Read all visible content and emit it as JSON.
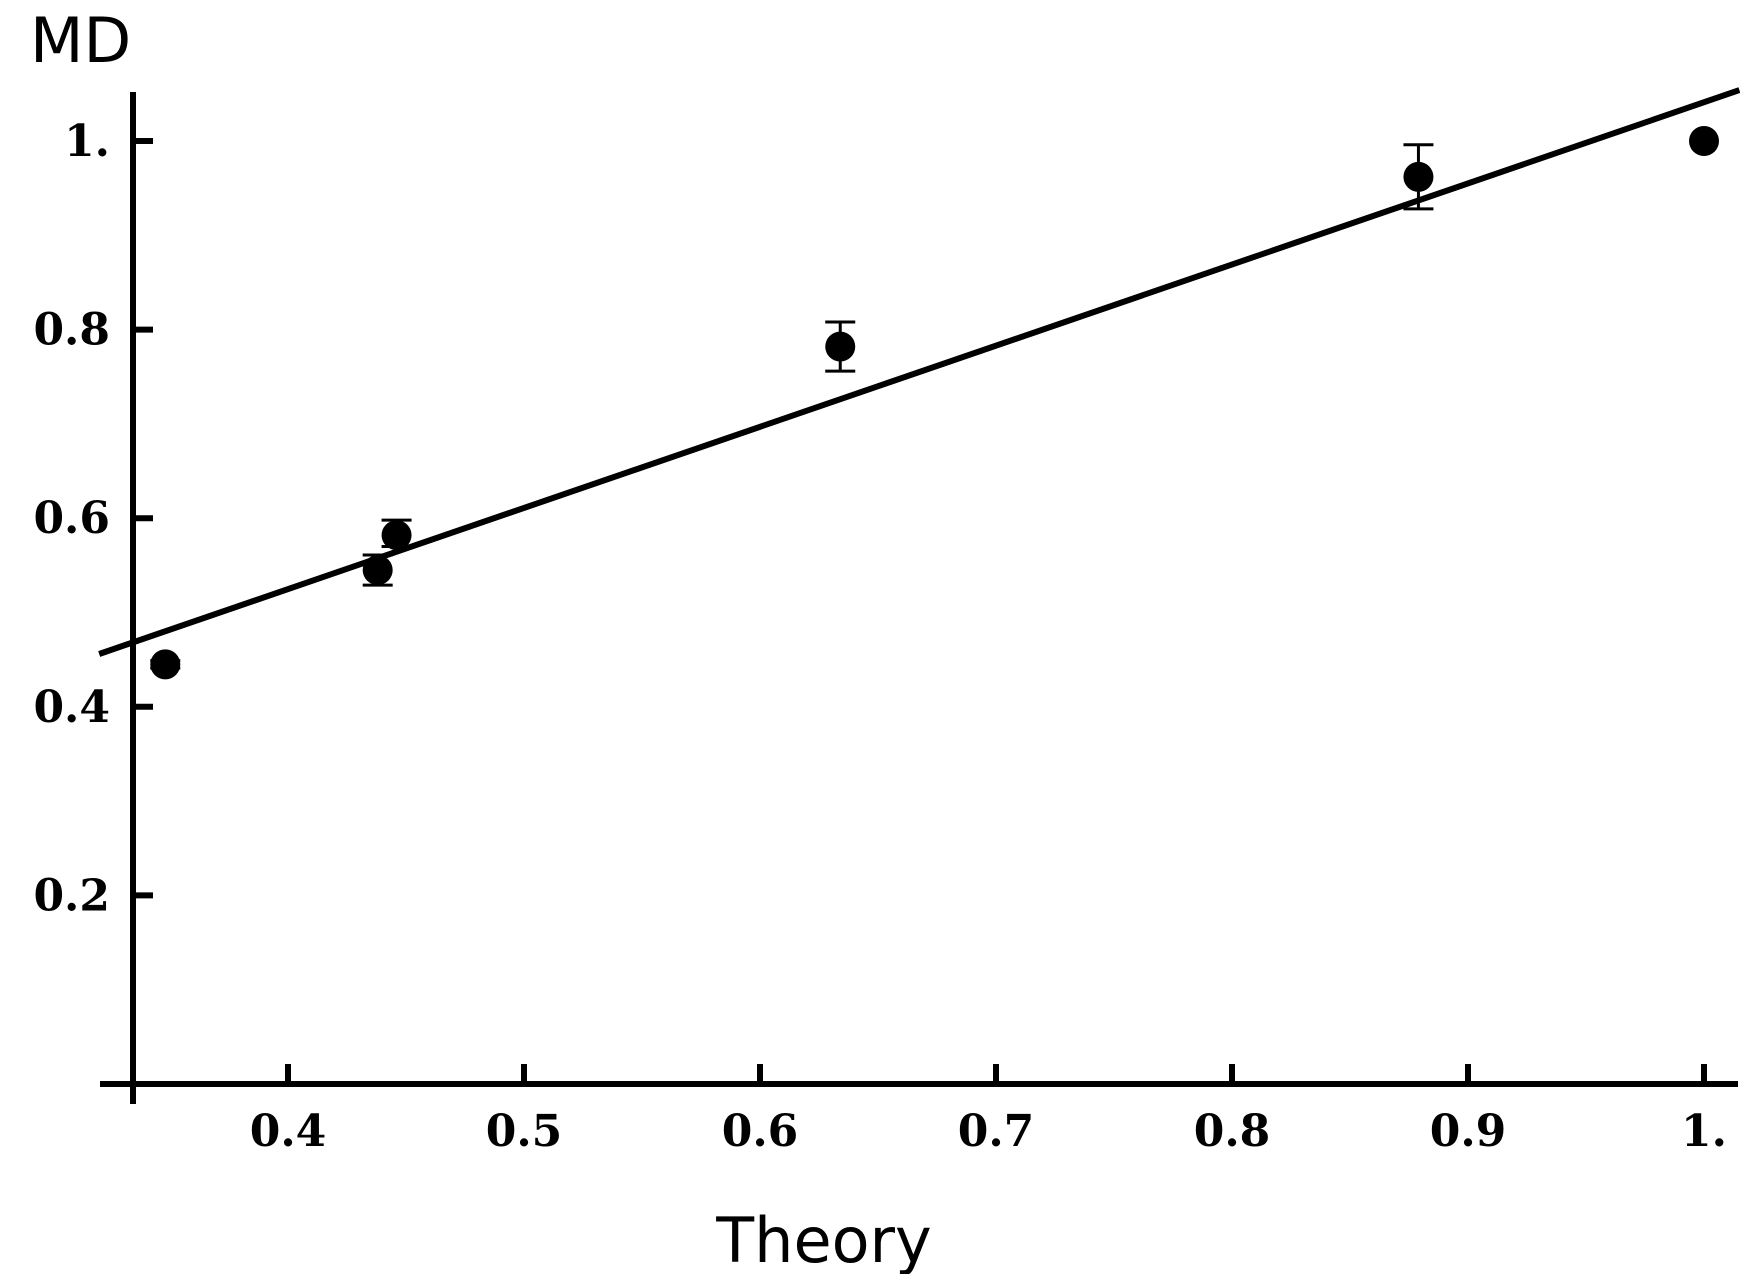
{
  "chart_data": {
    "type": "scatter",
    "title": "",
    "xlabel": "Theory",
    "ylabel": "MD",
    "xlim": [
      0.335,
      1.015
    ],
    "ylim": [
      0.0,
      1.05
    ],
    "xticks": [
      0.4,
      0.5,
      0.6,
      0.7,
      0.8,
      0.9,
      1.0
    ],
    "xtick_labels": [
      "0.4",
      "0.5",
      "0.6",
      "0.7",
      "0.8",
      "0.9",
      "1."
    ],
    "yticks": [
      0.2,
      0.4,
      0.6,
      0.8,
      1.0
    ],
    "ytick_labels": [
      "0.2",
      "0.4",
      "0.6",
      "0.8",
      "1."
    ],
    "grid": false,
    "legend": "none",
    "colors": {
      "points": "#000000",
      "fit_line": "#000000",
      "axes": "#000000"
    },
    "series": [
      {
        "type": "scatter",
        "x": [
          0.348,
          0.438,
          0.446,
          0.634,
          0.879,
          1.0
        ],
        "y": [
          0.445,
          0.545,
          0.582,
          0.782,
          0.962,
          1.0
        ],
        "yerr_low": [
          0.004,
          0.016,
          0.012,
          0.026,
          0.034,
          0.0
        ],
        "yerr_high": [
          0.004,
          0.016,
          0.016,
          0.026,
          0.034,
          0.0
        ]
      },
      {
        "type": "line",
        "x": [
          0.32,
          1.015
        ],
        "y": [
          0.456,
          1.054
        ]
      }
    ]
  }
}
